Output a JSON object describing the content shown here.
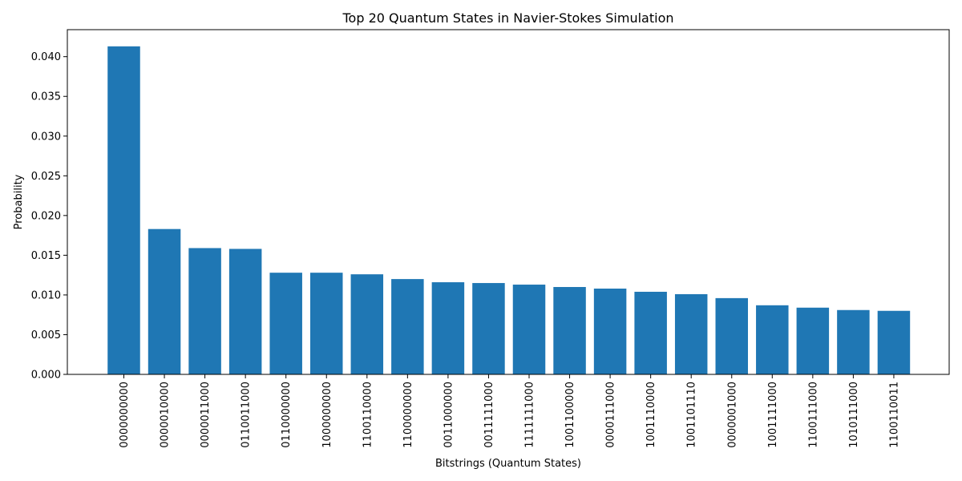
{
  "chart_data": {
    "type": "bar",
    "title": "Top 20 Quantum States in Navier-Stokes Simulation",
    "xlabel": "Bitstrings (Quantum States)",
    "ylabel": "Probability",
    "ylim": [
      0,
      0.0434
    ],
    "yticks": [
      "0.000",
      "0.005",
      "0.010",
      "0.015",
      "0.020",
      "0.025",
      "0.030",
      "0.035",
      "0.040"
    ],
    "ytick_values": [
      0,
      0.005,
      0.01,
      0.015,
      0.02,
      0.025,
      0.03,
      0.035,
      0.04
    ],
    "categories": [
      "0000000000",
      "0000010000",
      "0000011000",
      "0110011000",
      "0110000000",
      "1000000000",
      "1100110000",
      "1100000000",
      "0011000000",
      "0011111000",
      "1111111000",
      "1001100000",
      "0000111000",
      "1001110000",
      "1001101110",
      "0000001000",
      "1001111000",
      "1100111000",
      "1010111000",
      "1100110011"
    ],
    "values": [
      0.0413,
      0.0183,
      0.0159,
      0.0158,
      0.0128,
      0.0128,
      0.0126,
      0.012,
      0.0116,
      0.0115,
      0.0113,
      0.011,
      0.0108,
      0.0104,
      0.0101,
      0.0096,
      0.0087,
      0.0084,
      0.0081,
      0.008
    ],
    "bar_color": "#1f77b4",
    "grid": false,
    "legend": "none"
  }
}
